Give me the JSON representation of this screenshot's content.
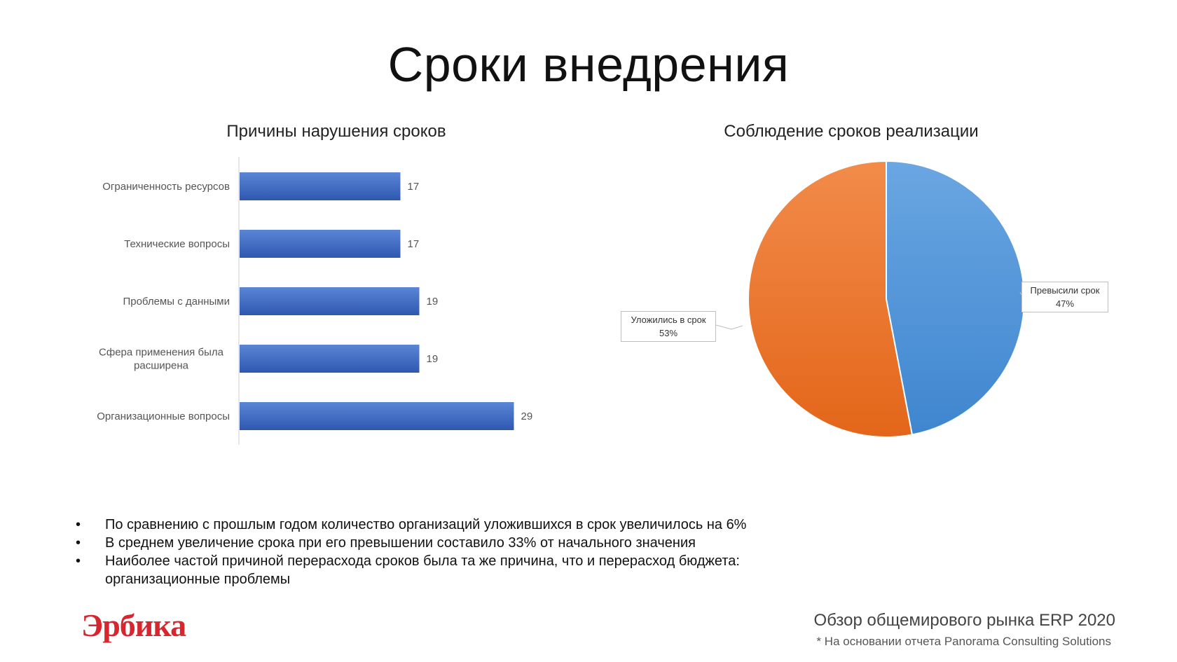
{
  "title": "Сроки внедрения",
  "chart_data": [
    {
      "type": "bar",
      "orientation": "horizontal",
      "title": "Причины нарушения сроков",
      "categories": [
        "Ограниченность ресурсов",
        "Технические вопросы",
        "Проблемы с данными",
        "Сфера применения была расширена",
        "Организационные вопросы"
      ],
      "values": [
        17,
        17,
        19,
        19,
        29
      ],
      "data_labels": [
        "17",
        "17",
        "19",
        "19",
        "29"
      ],
      "xlim": [
        0,
        35
      ],
      "grid": false,
      "color": "#4472c4"
    },
    {
      "type": "pie",
      "title": "Соблюдение сроков реализации",
      "slices": [
        {
          "label": "Превысили срок",
          "value": 47,
          "value_label": "47%",
          "color": "#5b9bd5"
        },
        {
          "label": "Уложились в срок",
          "value": 53,
          "value_label": "53%",
          "color": "#ed7d31"
        }
      ]
    }
  ],
  "notes": [
    "По сравнению с прошлым годом количество организаций уложившихся в срок увеличилось на 6%",
    "В среднем увеличение срока при его превышении составило 33% от начального значения",
    "Наиболее частой причиной перерасхода сроков была та же причина, что и перерасход бюджета: организационные проблемы"
  ],
  "bullet_symbol": "•",
  "footer": {
    "logo_text": "Эрбика",
    "title": "Обзор общемирового рынка ERP 2020",
    "note": "* На основании отчета Panorama Consulting Solutions"
  }
}
